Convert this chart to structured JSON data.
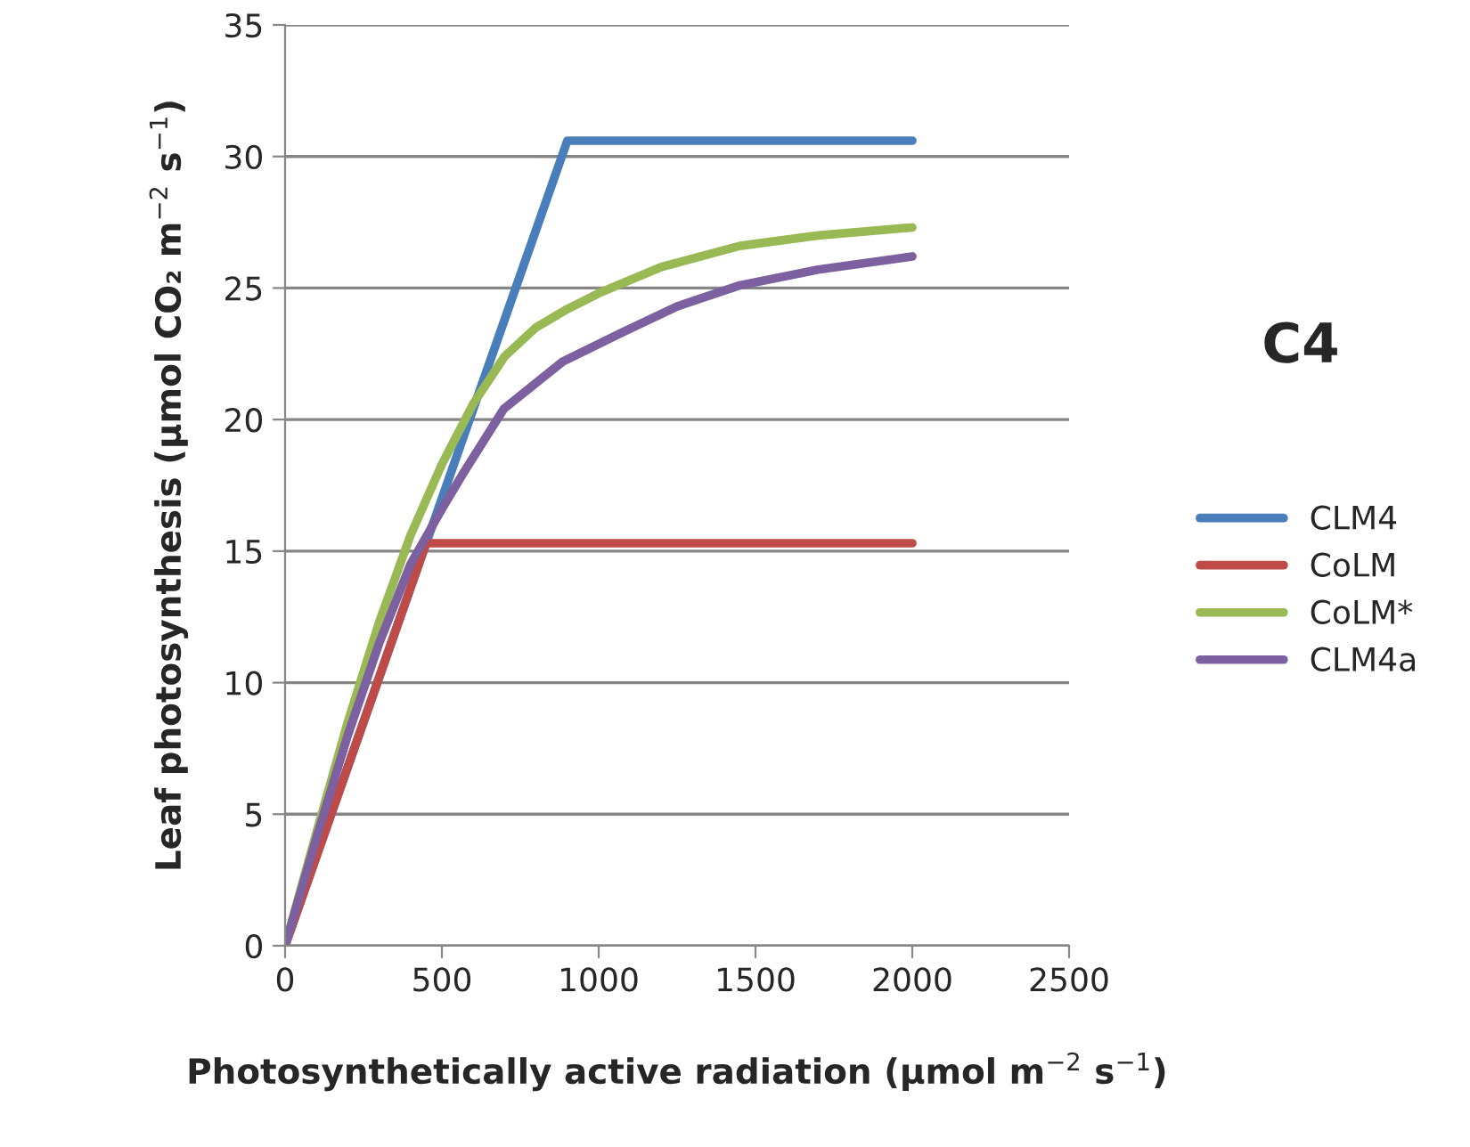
{
  "chart_data": {
    "type": "line",
    "title": "C4",
    "xlabel": "Photosynthetically active radiation (µmol m$^{−2}$ s$^{−1}$)",
    "ylabel": "Leaf photosynthesis (µmol CO₂ m$^{−2}$ s$^{−1}$)",
    "series": [
      {
        "name": "CLM4",
        "color": "#4a7ebb",
        "x": [
          0,
          900,
          2000
        ],
        "values": [
          0,
          30.6,
          30.6
        ]
      },
      {
        "name": "CoLM",
        "color": "#be4b48",
        "x": [
          0,
          450,
          2000
        ],
        "values": [
          0,
          15.3,
          15.3
        ]
      },
      {
        "name": "CoLM*",
        "color": "#98b954",
        "x": [
          0,
          100,
          200,
          300,
          400,
          500,
          600,
          700,
          800,
          900,
          1000,
          1200,
          1450,
          1700,
          2000
        ],
        "values": [
          0,
          4.3,
          8.5,
          12.3,
          15.6,
          18.3,
          20.6,
          22.4,
          23.5,
          24.2,
          24.8,
          25.8,
          26.6,
          27.0,
          27.3
        ]
      },
      {
        "name": "CLM4a",
        "color": "#7d60a0",
        "x": [
          0,
          100,
          200,
          300,
          400,
          500,
          565,
          697,
          885,
          1073,
          1250,
          1450,
          1700,
          2000
        ],
        "values": [
          0,
          4.1,
          8.0,
          11.5,
          14.5,
          16.6,
          17.9,
          20.4,
          22.2,
          23.3,
          24.3,
          25.1,
          25.7,
          26.2
        ]
      }
    ],
    "xlim": [
      0,
      2500
    ],
    "xticks": [
      0,
      500,
      1000,
      1500,
      2000,
      2500
    ],
    "ylim": [
      0,
      35
    ],
    "yticks": [
      0,
      5,
      10,
      15,
      20,
      25,
      30,
      35
    ],
    "grid": "y",
    "legend": "right",
    "marker": "none",
    "line_style": "solid"
  }
}
